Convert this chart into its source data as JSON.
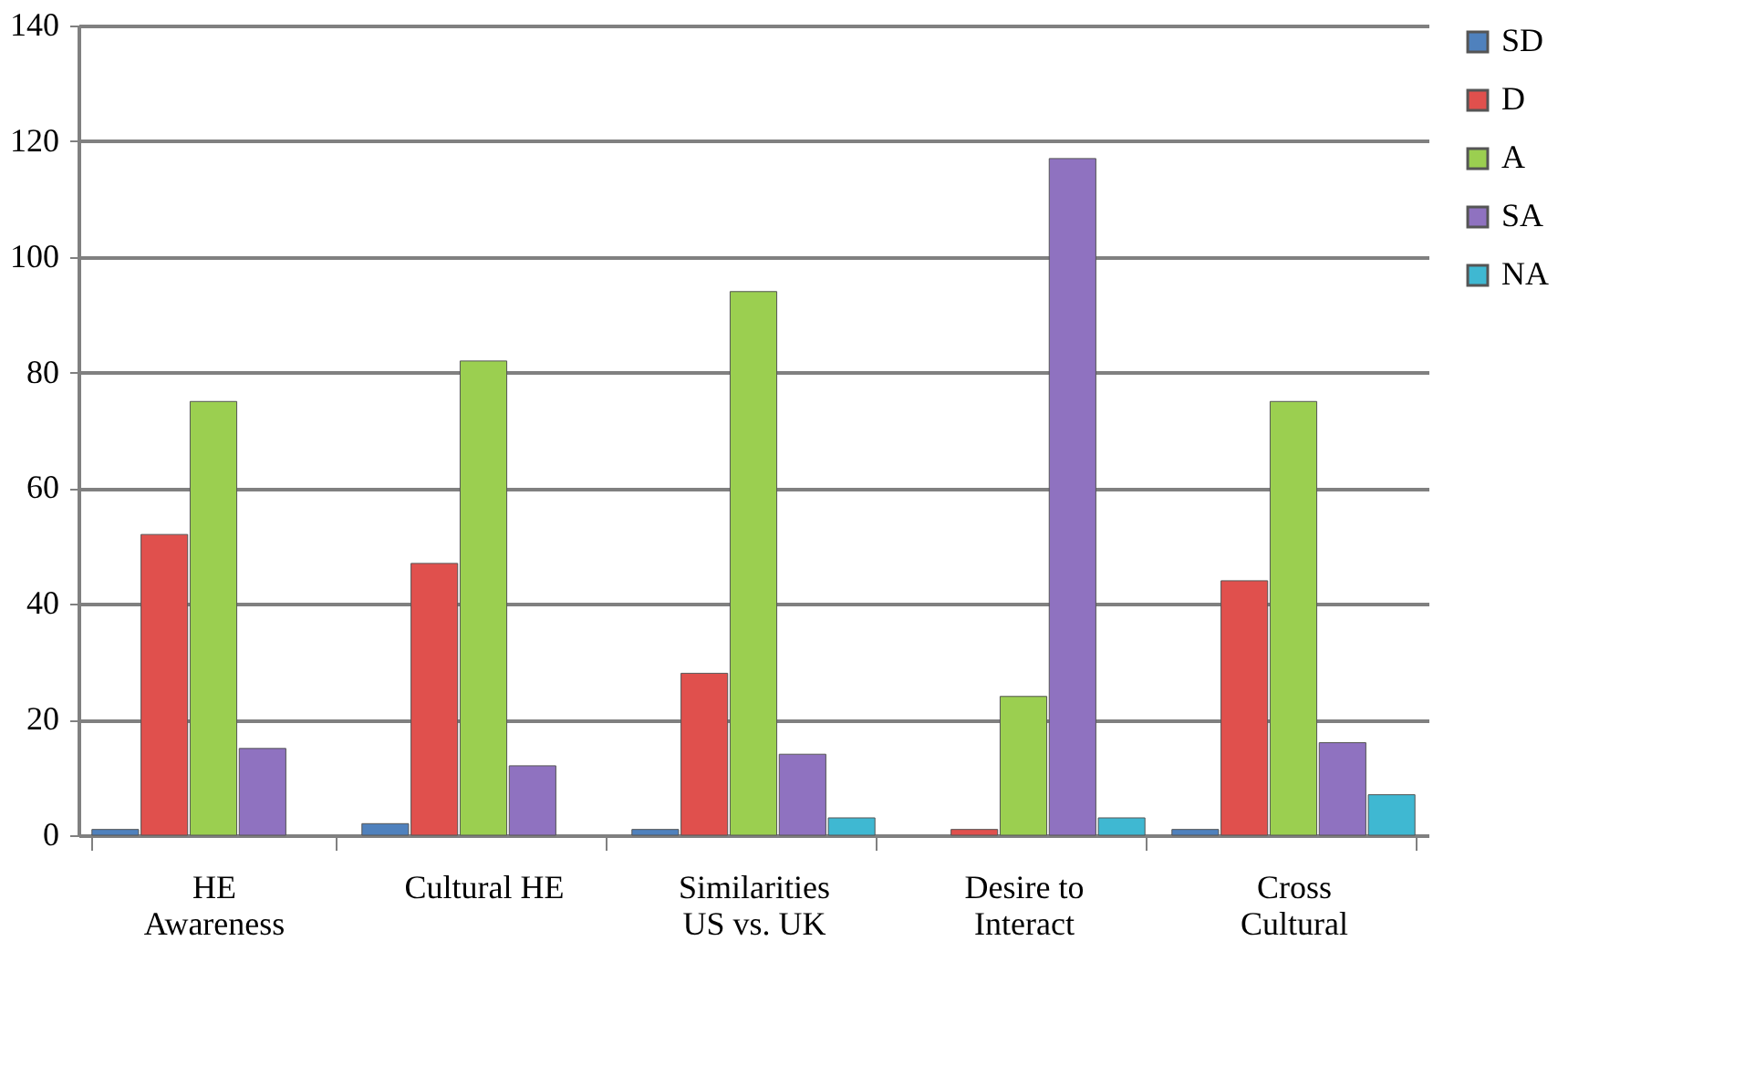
{
  "chart_data": {
    "type": "bar",
    "categories": [
      "HE\nAwareness",
      "Cultural HE",
      "Similarities\nUS vs. UK",
      "Desire to\nInteract",
      "Cross\nCultural"
    ],
    "series": [
      {
        "name": "SD",
        "color": "#4f81bd",
        "values": [
          1,
          2,
          1,
          null,
          1
        ]
      },
      {
        "name": "D",
        "color": "#e0504d",
        "values": [
          52,
          47,
          28,
          1,
          44
        ]
      },
      {
        "name": "A",
        "color": "#9bcf50",
        "values": [
          75,
          82,
          94,
          24,
          75
        ]
      },
      {
        "name": "SA",
        "color": "#8f72c0",
        "values": [
          15,
          12,
          14,
          117,
          16
        ]
      },
      {
        "name": "NA",
        "color": "#3fb8d2",
        "values": [
          null,
          null,
          3,
          3,
          7
        ]
      }
    ],
    "ylim": [
      0,
      140
    ],
    "yticks": [
      0,
      20,
      40,
      60,
      80,
      100,
      120,
      140
    ],
    "grid": "y",
    "legend": "right"
  }
}
